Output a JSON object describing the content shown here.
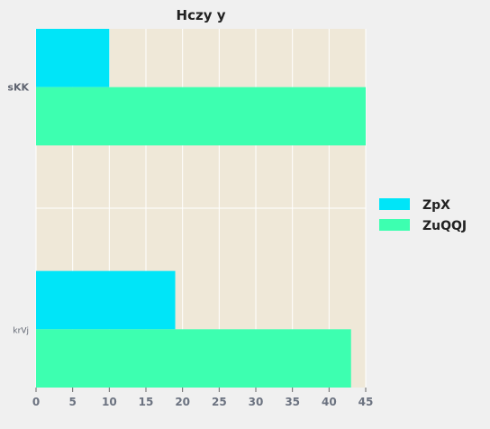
{
  "chart_data": {
    "type": "bar",
    "orientation": "horizontal",
    "title": "Hczy y",
    "xlabel": "",
    "ylabel": "",
    "categories": [
      "sKK",
      "krVj"
    ],
    "series": [
      {
        "name": "ZpX",
        "values": [
          10,
          19
        ],
        "color": "#00e5f8"
      },
      {
        "name": "ZuQQJ",
        "values": [
          45,
          43
        ],
        "color": "#3dffb0"
      }
    ],
    "xlim": [
      0,
      45
    ],
    "x_ticks": [
      0,
      5,
      10,
      15,
      20,
      25,
      30,
      35,
      40,
      45
    ],
    "grid": true,
    "legend_position": "right",
    "plot_background": "#efe8d8",
    "grid_color": "#ffffff"
  }
}
